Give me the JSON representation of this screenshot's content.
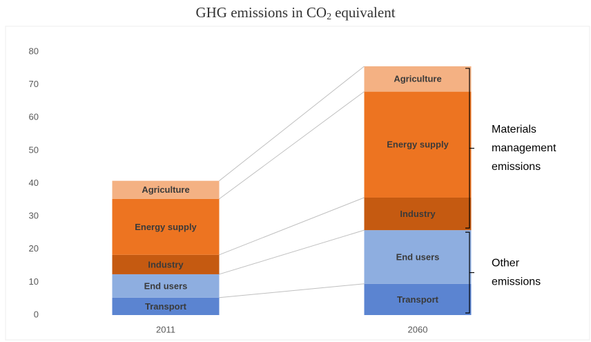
{
  "chart_data": {
    "type": "stacked_bar",
    "title": {
      "text": "GHG emissions in CO",
      "subscript": "2",
      "rest": "equivalent"
    },
    "categories": [
      "2011",
      "2060"
    ],
    "series": [
      {
        "name": "Transport",
        "color": "#5b84d1",
        "values": [
          5.3,
          9.5
        ]
      },
      {
        "name": "End users",
        "color": "#8eaee0",
        "values": [
          7.1,
          16.3
        ]
      },
      {
        "name": "Industry",
        "color": "#c55a11",
        "values": [
          5.9,
          9.9
        ]
      },
      {
        "name": "Energy supply",
        "color": "#ed7421",
        "values": [
          17,
          32.2
        ]
      },
      {
        "name": "Agriculture",
        "color": "#f4b183",
        "values": [
          5.5,
          7.7
        ]
      }
    ],
    "ylim": [
      0,
      80
    ],
    "yticks": [
      0,
      10,
      20,
      30,
      40,
      50,
      60,
      70,
      80
    ],
    "annotations": [
      {
        "lines": [
          "Materials",
          "management",
          "emissions"
        ]
      },
      {
        "lines": [
          "Other",
          "emissions"
        ]
      }
    ]
  }
}
